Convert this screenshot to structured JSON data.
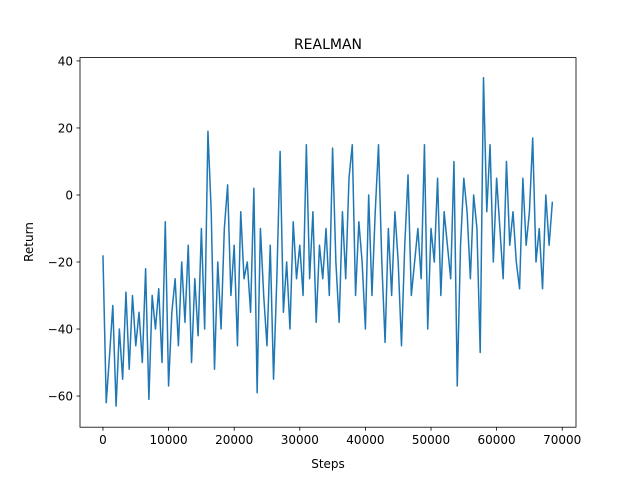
{
  "chart_data": {
    "type": "line",
    "title": "REALMAN",
    "x_label": "Steps",
    "y_label": "Return",
    "xlim": [
      -3500,
      72100
    ],
    "ylim": [
      -69.3,
      41.0
    ],
    "xticks": [
      0,
      10000,
      20000,
      30000,
      40000,
      50000,
      60000,
      70000
    ],
    "yticks": [
      {
        "value": -60,
        "label": "−60"
      },
      {
        "value": -40,
        "label": "−40"
      },
      {
        "value": -20,
        "label": "−20"
      },
      0,
      20,
      40
    ],
    "x": [
      0,
      500,
      1000,
      1500,
      2000,
      2500,
      3000,
      3500,
      4000,
      4500,
      5000,
      5500,
      6000,
      6500,
      7000,
      7500,
      8000,
      8500,
      9000,
      9500,
      10000,
      10500,
      11000,
      11500,
      12000,
      12500,
      13000,
      13500,
      14000,
      14500,
      15000,
      15500,
      16000,
      16500,
      17000,
      17500,
      18000,
      18500,
      19000,
      19500,
      20000,
      20500,
      21000,
      21500,
      22000,
      22500,
      23000,
      23500,
      24000,
      24500,
      25000,
      25500,
      26000,
      26500,
      27000,
      27500,
      28000,
      28500,
      29000,
      29500,
      30000,
      30500,
      31000,
      31500,
      32000,
      32500,
      33000,
      33500,
      34000,
      34500,
      35000,
      35500,
      36000,
      36500,
      37000,
      37500,
      38000,
      38500,
      39000,
      39500,
      40000,
      40500,
      41000,
      41500,
      42000,
      42500,
      43000,
      43500,
      44000,
      44500,
      45000,
      45500,
      46000,
      46500,
      47000,
      47500,
      48000,
      48500,
      49000,
      49500,
      50000,
      50500,
      51000,
      51500,
      52000,
      52500,
      53000,
      53500,
      54000,
      54500,
      55000,
      55500,
      56000,
      56500,
      57000,
      57500,
      58000,
      58500,
      59000,
      59500,
      60000,
      60500,
      61000,
      61500,
      62000,
      62500,
      63000,
      63500,
      64000,
      64500,
      65000,
      65500,
      66000,
      66500,
      67000,
      67500,
      68000,
      68500
    ],
    "series": [
      {
        "name": "Return",
        "color": "#1f77b4",
        "values": [
          -18,
          -62,
          -48,
          -33,
          -63,
          -40,
          -55,
          -29,
          -52,
          -30,
          -45,
          -35,
          -50,
          -22,
          -61,
          -30,
          -40,
          -28,
          -50,
          -8,
          -57,
          -35,
          -25,
          -45,
          -20,
          -38,
          -15,
          -50,
          -25,
          -42,
          -10,
          -40,
          19,
          -5,
          -52,
          -20,
          -40,
          -10,
          3,
          -30,
          -15,
          -45,
          -5,
          -25,
          -20,
          -35,
          2,
          -59,
          -10,
          -30,
          -45,
          -15,
          -55,
          -25,
          13,
          -35,
          -20,
          -40,
          -8,
          -25,
          -15,
          -30,
          15,
          -25,
          -5,
          -38,
          -15,
          -25,
          -10,
          -30,
          14,
          -20,
          -38,
          -5,
          -25,
          5,
          15,
          -30,
          -8,
          -20,
          -40,
          0,
          -30,
          -5,
          15,
          -20,
          -44,
          -10,
          -30,
          -5,
          -20,
          -45,
          -15,
          6,
          -30,
          -20,
          -10,
          -25,
          15,
          -40,
          -10,
          -20,
          5,
          -30,
          -5,
          -15,
          -25,
          10,
          -57,
          -15,
          5,
          -5,
          -25,
          0,
          -10,
          -47,
          35,
          -5,
          15,
          -20,
          5,
          -10,
          -25,
          10,
          -15,
          -5,
          -20,
          -28,
          5,
          -15,
          -5,
          17,
          -20,
          -10,
          -28,
          0,
          -15,
          -2
        ]
      }
    ]
  }
}
